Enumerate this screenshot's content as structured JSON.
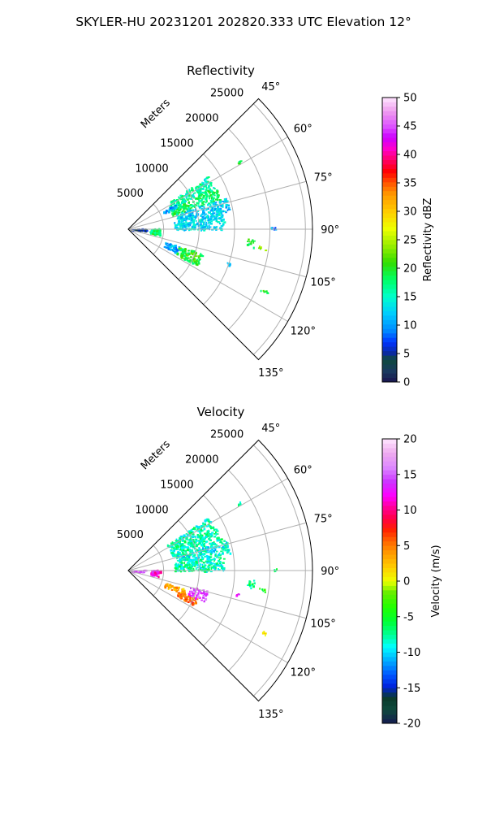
{
  "figure": {
    "suptitle": "SKYLER-HU  20231201  202820.333 UTC Elevation 12°"
  },
  "chart_data": [
    {
      "type": "polar-sector",
      "title": "Reflectivity",
      "theta_range_deg": [
        45,
        135
      ],
      "theta_ticks": [
        "45°",
        "60°",
        "75°",
        "90°",
        "105°",
        "120°",
        "135°"
      ],
      "r_max_m": 26000,
      "r_ticks": [
        "5000",
        "10000",
        "15000",
        "20000",
        "25000"
      ],
      "r_axis_label": "Meters",
      "grid": true,
      "colorbar": {
        "label": "Reflectivity dBZ",
        "vmin": 0,
        "vmax": 50,
        "ticks": [
          "0",
          "5",
          "10",
          "15",
          "20",
          "25",
          "30",
          "35",
          "40",
          "45",
          "50"
        ],
        "colormap": "pyart_HomeyerRainbow"
      },
      "echo_regions": [
        {
          "az_deg": [
            56,
            64
          ],
          "range_m": [
            6500,
            13500
          ],
          "value": 16
        },
        {
          "az_deg": [
            64,
            72
          ],
          "range_m": [
            6500,
            13800
          ],
          "value": 18
        },
        {
          "az_deg": [
            72,
            80
          ],
          "range_m": [
            7000,
            14500
          ],
          "value": 12
        },
        {
          "az_deg": [
            80,
            90
          ],
          "range_m": [
            6500,
            13500
          ],
          "value": 13
        },
        {
          "az_deg": [
            62,
            66
          ],
          "range_m": [
            5500,
            7500
          ],
          "value": 10
        },
        {
          "az_deg": [
            86,
            94
          ],
          "range_m": [
            300,
            2500
          ],
          "value": 4
        },
        {
          "az_deg": [
            88,
            100
          ],
          "range_m": [
            3000,
            4500
          ],
          "value": 18
        },
        {
          "az_deg": [
            108,
            116
          ],
          "range_m": [
            5500,
            7500
          ],
          "value": 11
        },
        {
          "az_deg": [
            108,
            118
          ],
          "range_m": [
            7500,
            11000
          ],
          "value": 20
        },
        {
          "az_deg": [
            58,
            59
          ],
          "range_m": [
            18000,
            18500
          ],
          "value": 19
        },
        {
          "az_deg": [
            94,
            98
          ],
          "range_m": [
            16800,
            17800
          ],
          "value": 20
        },
        {
          "az_deg": [
            97,
            99
          ],
          "range_m": [
            18500,
            19500
          ],
          "value": 24
        },
        {
          "az_deg": [
            89,
            90
          ],
          "range_m": [
            20000,
            21000
          ],
          "value": 10
        },
        {
          "az_deg": [
            108,
            110
          ],
          "range_m": [
            14500,
            15000
          ],
          "value": 11
        },
        {
          "az_deg": [
            114,
            115
          ],
          "range_m": [
            20500,
            21500
          ],
          "value": 19
        }
      ]
    },
    {
      "type": "polar-sector",
      "title": "Velocity",
      "theta_range_deg": [
        45,
        135
      ],
      "theta_ticks": [
        "45°",
        "60°",
        "75°",
        "90°",
        "105°",
        "120°",
        "135°"
      ],
      "r_max_m": 26000,
      "r_ticks": [
        "5000",
        "10000",
        "15000",
        "20000",
        "25000"
      ],
      "r_axis_label": "Meters",
      "grid": true,
      "colorbar": {
        "label": "Velocity (m/s)",
        "vmin": -20,
        "vmax": 20,
        "ticks": [
          "-20",
          "-15",
          "-10",
          "-5",
          "0",
          "5",
          "10",
          "15",
          "20"
        ],
        "colormap": "pyart_Carbone42"
      },
      "echo_regions": [
        {
          "az_deg": [
            56,
            64
          ],
          "range_m": [
            6500,
            13500
          ],
          "value": -8
        },
        {
          "az_deg": [
            64,
            72
          ],
          "range_m": [
            6500,
            13800
          ],
          "value": -8
        },
        {
          "az_deg": [
            72,
            80
          ],
          "range_m": [
            7000,
            14500
          ],
          "value": -9
        },
        {
          "az_deg": [
            80,
            90
          ],
          "range_m": [
            6500,
            13500
          ],
          "value": -8
        },
        {
          "az_deg": [
            86,
            94
          ],
          "range_m": [
            300,
            2500
          ],
          "value": 15
        },
        {
          "az_deg": [
            88,
            100
          ],
          "range_m": [
            3000,
            4500
          ],
          "value": 12
        },
        {
          "az_deg": [
            108,
            114
          ],
          "range_m": [
            5500,
            8500
          ],
          "value": 3
        },
        {
          "az_deg": [
            112,
            118
          ],
          "range_m": [
            7500,
            10500
          ],
          "value": 6
        },
        {
          "az_deg": [
            104,
            112
          ],
          "range_m": [
            9000,
            11500
          ],
          "value": 14
        },
        {
          "az_deg": [
            58,
            59
          ],
          "range_m": [
            18000,
            18500
          ],
          "value": -7
        },
        {
          "az_deg": [
            94,
            98
          ],
          "range_m": [
            16800,
            17800
          ],
          "value": -7
        },
        {
          "az_deg": [
            97,
            99
          ],
          "range_m": [
            18500,
            19500
          ],
          "value": -5
        },
        {
          "az_deg": [
            89,
            90
          ],
          "range_m": [
            20000,
            21000
          ],
          "value": -6
        },
        {
          "az_deg": [
            101,
            103
          ],
          "range_m": [
            15500,
            16000
          ],
          "value": 12
        },
        {
          "az_deg": [
            114,
            115
          ],
          "range_m": [
            20500,
            21500
          ],
          "value": 2
        }
      ]
    }
  ]
}
